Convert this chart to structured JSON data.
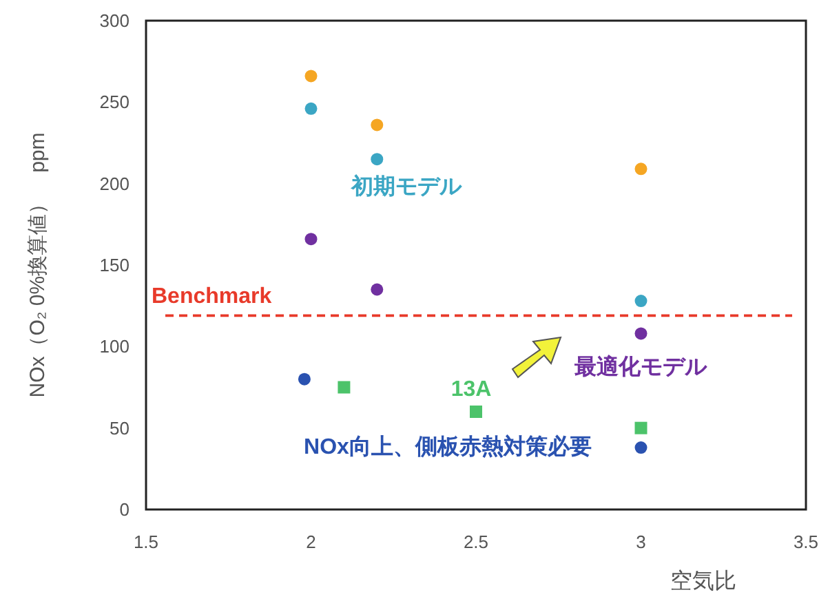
{
  "chart_data": {
    "type": "scatter",
    "xlabel": "空気比",
    "ylabel": "NOx（O₂ 0%換算値）　ppm",
    "xlim": [
      1.5,
      3.5
    ],
    "xticks": [
      1.5,
      2,
      2.5,
      3,
      3.5
    ],
    "ylim": [
      0,
      300
    ],
    "yticks": [
      0,
      50,
      100,
      150,
      200,
      250,
      300
    ],
    "series": [
      {
        "color": "#f5a623",
        "marker": "circle",
        "x": [
          2,
          2.2,
          3
        ],
        "values": [
          266,
          236,
          209
        ]
      },
      {
        "name": "初期モデル",
        "color": "#3ba6c4",
        "marker": "circle",
        "x": [
          2,
          2.2,
          3
        ],
        "values": [
          246,
          215,
          128
        ]
      },
      {
        "name": "最適化モデル",
        "color": "#7030a0",
        "marker": "circle",
        "x": [
          2,
          2.2,
          3
        ],
        "values": [
          166,
          135,
          108
        ]
      },
      {
        "name": "13A",
        "color": "#4cc36a",
        "marker": "square",
        "x": [
          2.1,
          2.5,
          3
        ],
        "values": [
          75,
          60,
          50
        ]
      },
      {
        "name": "NOx向上、側板赤熱対策必要",
        "color": "#2a52b0",
        "marker": "circle",
        "x": [
          1.98,
          3
        ],
        "values": [
          80,
          38
        ]
      }
    ],
    "ref_lines": [
      {
        "axis": "y",
        "value": 119,
        "label": "Benchmark",
        "color": "#e83a2a",
        "line_style": "dashed"
      }
    ]
  }
}
